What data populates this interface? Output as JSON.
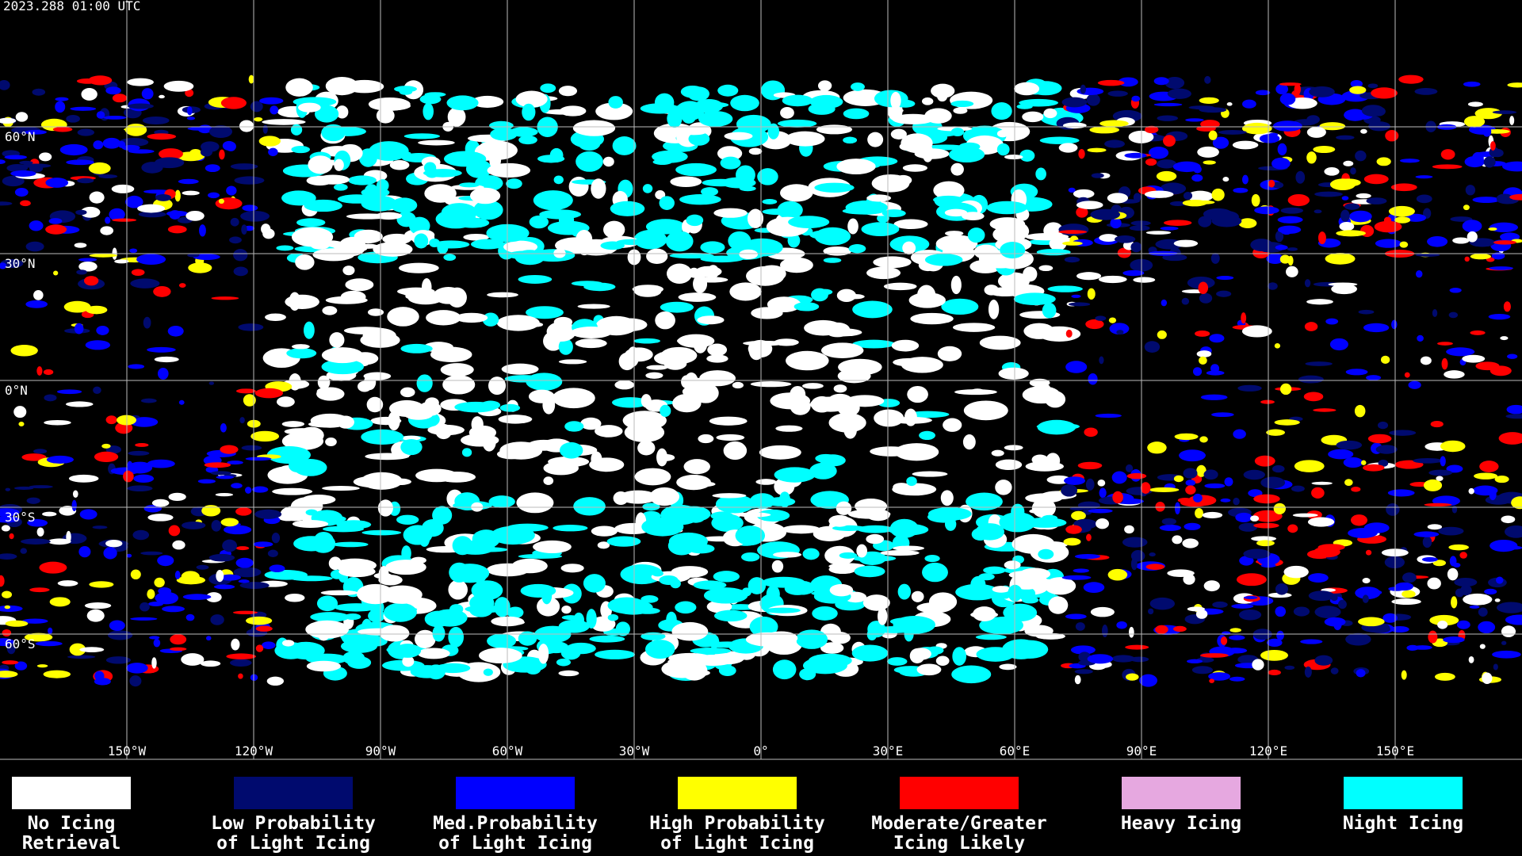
{
  "header": {
    "timestamp": "2023.288 01:00 UTC"
  },
  "map": {
    "latitude_labels": [
      "60°N",
      "30°N",
      "0°N",
      "30°S",
      "60°S"
    ],
    "longitude_labels": [
      "150°W",
      "120°W",
      "90°W",
      "60°W",
      "30°W",
      "0°",
      "30°E",
      "60°E",
      "90°E",
      "120°E",
      "150°E"
    ]
  },
  "legend": [
    {
      "label": [
        "No Icing",
        "Retrieval"
      ],
      "color": "#ffffff"
    },
    {
      "label": [
        "Low Probability",
        "of Light Icing"
      ],
      "color": "#000a6e"
    },
    {
      "label": [
        "Med.Probability",
        "of Light Icing"
      ],
      "color": "#0000ff"
    },
    {
      "label": [
        "High Probability",
        "of Light Icing"
      ],
      "color": "#ffff00"
    },
    {
      "label": [
        "Moderate/Greater",
        "Icing Likely"
      ],
      "color": "#ff0000"
    },
    {
      "label": [
        "Heavy Icing"
      ],
      "color": "#e6a8e0"
    },
    {
      "label": [
        "Night Icing"
      ],
      "color": "#00ffff"
    }
  ]
}
